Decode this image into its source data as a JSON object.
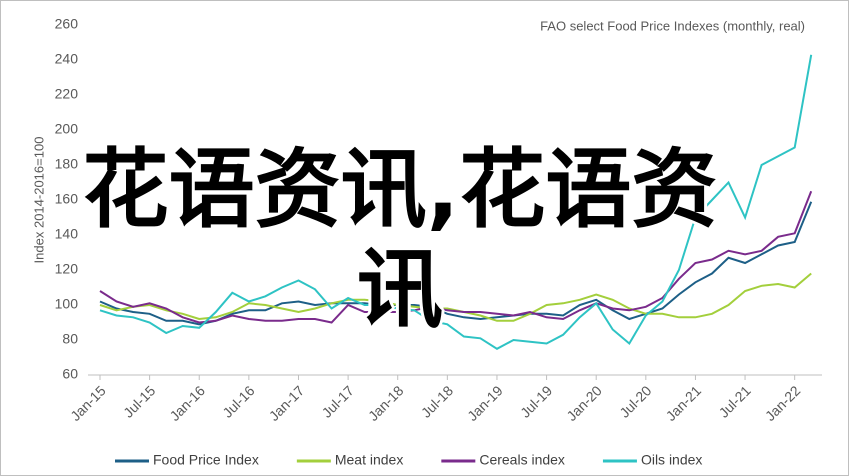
{
  "chart_data": {
    "type": "line",
    "subtitle": "FAO select Food Price Indexes (monthly, real)",
    "y_label": "Index 2014-2016=100",
    "overlay_text": "花语资讯,花语资讯",
    "categories": [
      "Jan-15",
      null,
      null,
      "Jul-15",
      null,
      null,
      "Jan-16",
      null,
      null,
      "Jul-16",
      null,
      null,
      "Jan-17",
      null,
      null,
      "Jul-17",
      null,
      null,
      "Jan-18",
      null,
      null,
      "Jul-18",
      null,
      null,
      "Jan-19",
      null,
      null,
      "Jul-19",
      null,
      null,
      "Jan-20",
      null,
      null,
      "Jul-20",
      null,
      null,
      "Jan-21",
      null,
      null,
      "Jul-21",
      null,
      null,
      "Jan-22",
      null
    ],
    "ylim": [
      60,
      260
    ],
    "yticks": [
      60,
      80,
      100,
      120,
      140,
      160,
      180,
      200,
      220,
      240,
      260
    ],
    "grid": false,
    "series": [
      {
        "name": "Food Price Index",
        "color": "#1d5f87",
        "values": [
          102,
          98,
          96,
          95,
          91,
          91,
          89,
          91,
          95,
          97,
          97,
          101,
          102,
          100,
          101,
          101,
          101,
          100,
          100,
          100,
          99,
          95,
          93,
          92,
          93,
          94,
          95,
          95,
          94,
          100,
          103,
          97,
          92,
          95,
          98,
          106,
          113,
          118,
          127,
          124,
          129,
          134,
          136,
          159
        ]
      },
      {
        "name": "Meat index",
        "color": "#a3cf3c",
        "values": [
          100,
          97,
          99,
          100,
          97,
          95,
          92,
          93,
          96,
          101,
          100,
          98,
          96,
          98,
          101,
          103,
          103,
          102,
          100,
          99,
          98,
          98,
          96,
          94,
          91,
          91,
          95,
          100,
          101,
          103,
          106,
          103,
          98,
          95,
          95,
          93,
          93,
          95,
          100,
          108,
          111,
          112,
          110,
          118
        ]
      },
      {
        "name": "Cereals index",
        "color": "#7a2b8c",
        "values": [
          108,
          102,
          99,
          101,
          98,
          93,
          90,
          91,
          94,
          92,
          91,
          91,
          92,
          92,
          90,
          100,
          96,
          96,
          96,
          97,
          99,
          97,
          96,
          96,
          95,
          94,
          96,
          93,
          92,
          97,
          101,
          98,
          97,
          99,
          104,
          115,
          124,
          126,
          131,
          129,
          131,
          139,
          141,
          165
        ]
      },
      {
        "name": "Oils index",
        "color": "#2ec3c4",
        "values": [
          97,
          94,
          93,
          90,
          84,
          88,
          87,
          96,
          107,
          102,
          105,
          110,
          114,
          109,
          98,
          104,
          100,
          100,
          98,
          97,
          91,
          89,
          82,
          81,
          75,
          80,
          79,
          78,
          83,
          93,
          101,
          86,
          78,
          94,
          102,
          120,
          150,
          160,
          170,
          150,
          180,
          185,
          190,
          243
        ]
      }
    ]
  }
}
